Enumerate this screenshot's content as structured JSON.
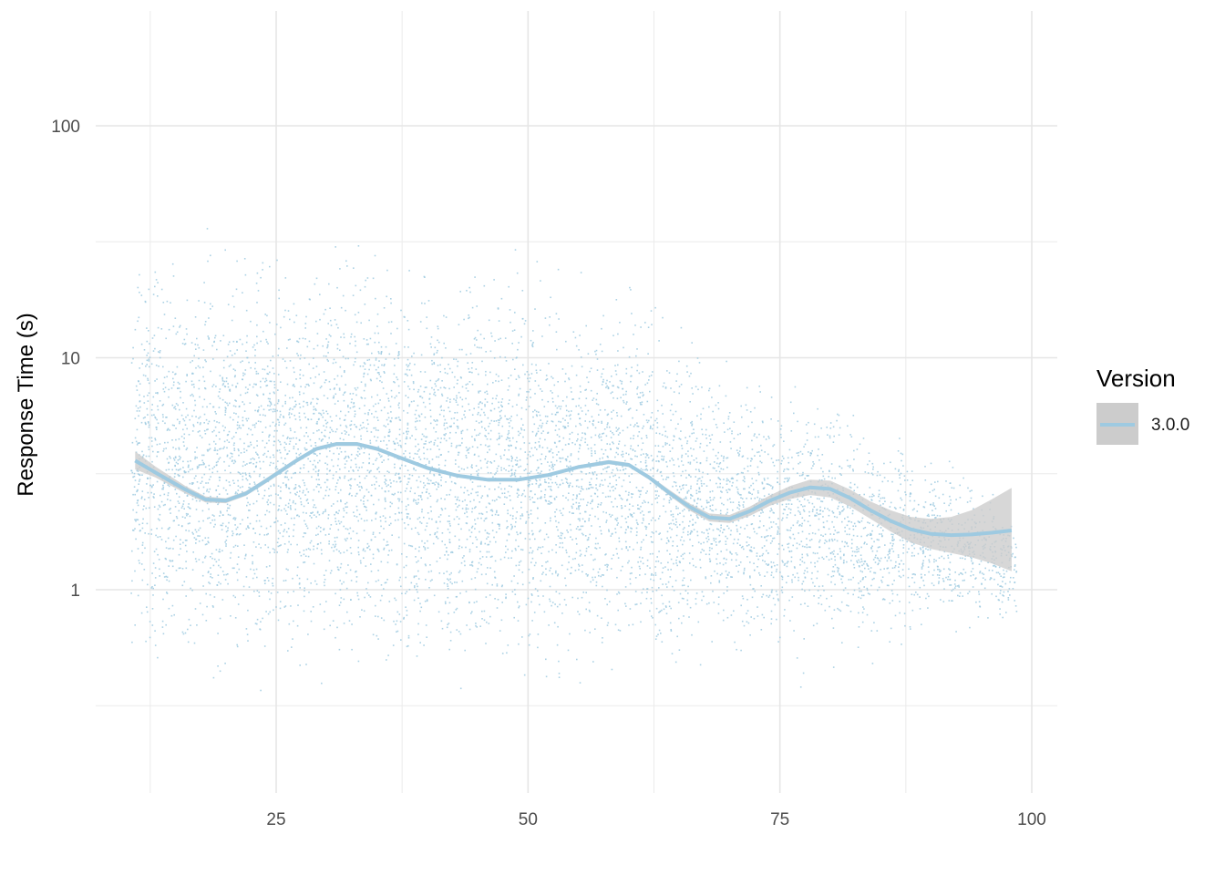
{
  "chart_data": {
    "type": "scatter",
    "title": "",
    "xlabel": "",
    "ylabel": "Response Time (s)",
    "x_ticks": [
      25,
      50,
      75,
      100
    ],
    "x_tick_labels": [
      "25",
      "50",
      "75",
      "100"
    ],
    "y_ticks": [
      1,
      10,
      100
    ],
    "y_tick_labels": [
      "1",
      "10",
      "100"
    ],
    "y_scale": "log10",
    "xlim": [
      10,
      102
    ],
    "ylim": [
      0.14,
      280
    ],
    "grid": true,
    "legend": {
      "title": "Version",
      "position": "right"
    },
    "colors": {
      "series": "#9ecae1",
      "ribbon": "#cccccc",
      "grid": "#ebebeb"
    },
    "series": [
      {
        "name": "3.0.0",
        "scatter_extent": {
          "x": [
            11,
            12,
            13,
            14,
            15,
            16,
            17,
            18,
            19,
            20,
            21,
            22,
            23,
            24,
            25,
            26,
            27,
            28,
            29,
            30,
            31,
            32,
            33,
            34,
            35,
            36,
            37,
            38,
            39,
            40,
            41,
            42,
            43,
            44,
            45,
            46,
            47,
            48,
            49,
            50,
            51,
            52,
            53,
            54,
            55,
            56,
            57,
            58,
            59,
            60,
            61,
            62,
            63,
            64,
            65,
            66,
            67,
            68,
            69,
            70,
            71,
            72,
            73,
            74,
            75,
            76,
            77,
            78,
            79,
            80,
            81,
            82,
            83,
            84,
            85,
            86,
            87,
            88,
            89,
            90,
            91,
            92,
            93,
            94,
            95,
            96,
            97,
            98
          ],
          "y_min": [
            0.45,
            0.4,
            0.35,
            0.32,
            0.33,
            0.32,
            0.33,
            0.32,
            0.3,
            0.32,
            0.3,
            0.31,
            0.3,
            0.32,
            0.33,
            0.3,
            0.32,
            0.31,
            0.31,
            0.3,
            0.32,
            0.3,
            0.33,
            0.31,
            0.32,
            0.32,
            0.3,
            0.31,
            0.3,
            0.29,
            0.3,
            0.29,
            0.3,
            0.31,
            0.3,
            0.29,
            0.31,
            0.3,
            0.31,
            0.3,
            0.31,
            0.3,
            0.31,
            0.32,
            0.31,
            0.32,
            0.32,
            0.33,
            0.32,
            0.33,
            0.34,
            0.33,
            0.35,
            0.32,
            0.3,
            0.35,
            0.4,
            0.38,
            0.4,
            0.38,
            0.35,
            0.4,
            0.45,
            0.4,
            0.42,
            0.45,
            0.35,
            0.48,
            0.5,
            0.4,
            0.45,
            0.5,
            0.35,
            0.45,
            0.5,
            0.55,
            0.45,
            0.55,
            0.5,
            0.6,
            0.55,
            0.6,
            0.65,
            0.55,
            0.6,
            0.65,
            0.55,
            0.7
          ],
          "y_max": [
            30,
            40,
            35,
            30,
            35,
            30,
            38,
            45,
            35,
            40,
            42,
            38,
            45,
            40,
            50,
            42,
            45,
            40,
            45,
            42,
            48,
            45,
            40,
            42,
            45,
            40,
            35,
            38,
            40,
            35,
            38,
            36,
            34,
            38,
            35,
            36,
            33,
            35,
            34,
            32,
            33,
            30,
            32,
            30,
            30,
            28,
            30,
            28,
            30,
            26,
            28,
            24,
            22,
            20,
            18,
            17,
            16,
            14,
            13,
            12,
            12,
            11,
            11,
            10,
            10,
            9,
            10,
            9,
            9,
            9,
            8,
            8,
            6,
            7,
            6,
            5,
            6,
            5,
            5,
            4.5,
            4,
            4,
            3.5,
            4,
            3,
            3,
            3,
            2.5
          ]
        },
        "smooth": {
          "x": [
            11,
            13,
            16,
            18,
            20,
            22,
            24,
            27,
            29,
            31,
            33,
            35,
            37,
            40,
            43,
            46,
            49,
            52,
            55,
            58,
            60,
            62,
            64,
            66,
            68,
            70,
            72,
            74,
            76,
            78,
            80,
            82,
            84,
            86,
            88,
            90,
            92,
            94,
            96,
            98
          ],
          "y": [
            3.6,
            3.2,
            2.7,
            2.45,
            2.42,
            2.6,
            2.95,
            3.6,
            4.05,
            4.25,
            4.25,
            4.05,
            3.75,
            3.35,
            3.1,
            2.98,
            2.98,
            3.12,
            3.38,
            3.55,
            3.45,
            3.05,
            2.62,
            2.28,
            2.05,
            2.02,
            2.18,
            2.42,
            2.62,
            2.76,
            2.72,
            2.48,
            2.2,
            1.98,
            1.82,
            1.74,
            1.72,
            1.73,
            1.76,
            1.8
          ],
          "lower": [
            3.3,
            3.05,
            2.6,
            2.38,
            2.36,
            2.54,
            2.88,
            3.52,
            3.97,
            4.17,
            4.17,
            3.97,
            3.68,
            3.29,
            3.05,
            2.93,
            2.93,
            3.07,
            3.32,
            3.48,
            3.38,
            2.98,
            2.55,
            2.2,
            1.97,
            1.94,
            2.08,
            2.3,
            2.46,
            2.56,
            2.5,
            2.28,
            2.02,
            1.78,
            1.6,
            1.5,
            1.44,
            1.38,
            1.3,
            1.2
          ],
          "upper": [
            3.95,
            3.4,
            2.8,
            2.52,
            2.48,
            2.66,
            3.02,
            3.68,
            4.13,
            4.33,
            4.33,
            4.13,
            3.82,
            3.41,
            3.15,
            3.03,
            3.03,
            3.17,
            3.44,
            3.62,
            3.52,
            3.12,
            2.7,
            2.36,
            2.13,
            2.1,
            2.28,
            2.55,
            2.8,
            2.98,
            2.95,
            2.7,
            2.4,
            2.2,
            2.06,
            2.02,
            2.06,
            2.2,
            2.45,
            2.75
          ]
        }
      }
    ]
  }
}
